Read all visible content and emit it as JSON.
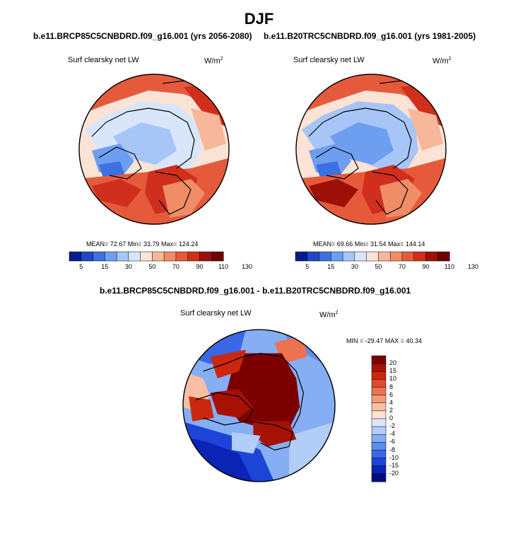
{
  "figure": {
    "title": "DJF"
  },
  "colors": {
    "map_scale": [
      "#0a1a8e",
      "#1f48c8",
      "#3d70e0",
      "#6e9ef0",
      "#a7c6f7",
      "#d8e6fb",
      "#fbe3d5",
      "#f7b79a",
      "#f08c66",
      "#e65a3c",
      "#cf2f1c",
      "#9e1007",
      "#6d0000"
    ],
    "diff_scale": [
      "#000b80",
      "#0a24b5",
      "#1c45d8",
      "#3967e8",
      "#5d8cef",
      "#86aef4",
      "#b2cdf8",
      "#dbe7fb",
      "#fde1d3",
      "#f9bfa5",
      "#f39a78",
      "#ec7252",
      "#e14a30",
      "#c9280f",
      "#a61104",
      "#7c0000"
    ]
  },
  "chart_data": [
    {
      "type": "heatmap",
      "projection": "north polar stereographic",
      "title": "b.e11.BRCP85C5CNBDRD.f09_g16.001 (yrs 2056-2080)",
      "variable": "Surf clearsky net LW",
      "units": "W/m",
      "units_exp": "2",
      "stats": {
        "mean": "72.67",
        "min": "33.79",
        "max": "124.24"
      },
      "stats_text": "MEAN=  72.67  Min=  33.79  Max= 124.24",
      "colorbar_labels": [
        "5",
        "15",
        "30",
        "50",
        "70",
        "90",
        "110",
        "130"
      ]
    },
    {
      "type": "heatmap",
      "projection": "north polar stereographic",
      "title": "b.e11.B20TRC5CNBDRD.f09_g16.001 (yrs 1981-2005)",
      "variable": "Surf clearsky net LW",
      "units": "W/m",
      "units_exp": "2",
      "stats": {
        "mean": "69.66",
        "min": "31.54",
        "max": "144.14"
      },
      "stats_text": "MEAN=  69.66  Min=  31.54  Max= 144.14",
      "colorbar_labels": [
        "5",
        "15",
        "30",
        "50",
        "70",
        "90",
        "110",
        "130"
      ]
    },
    {
      "type": "heatmap",
      "projection": "north polar stereographic",
      "title": "b.e11.BRCP85C5CNBDRD.f09_g16.001 - b.e11.B20TRC5CNBDRD.f09_g16.001",
      "variable": "Surf clearsky net LW",
      "units": "W/m",
      "units_exp": "2",
      "stats": {
        "min": "-29.47",
        "max": "40.34"
      },
      "stats_text": "MIN = -29.47 MAX =  40.34",
      "colorbar_labels": [
        "20",
        "15",
        "10",
        "8",
        "6",
        "4",
        "2",
        "0",
        "-2",
        "-4",
        "-6",
        "-8",
        "-10",
        "-15",
        "-20"
      ]
    }
  ]
}
